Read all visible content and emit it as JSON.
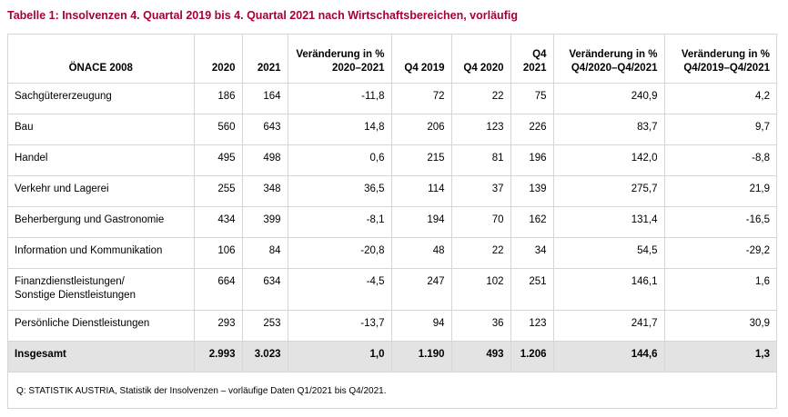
{
  "title": "Tabelle 1: Insolvenzen 4. Quartal 2019 bis 4. Quartal 2021 nach Wirtschaftsbereichen, vorläufig",
  "headers": {
    "sector": "ÖNACE 2008",
    "y2020": "2020",
    "y2021": "2021",
    "chg_year_line1": "Veränderung in %",
    "chg_year_line2": "2020–2021",
    "q4_2019": "Q4 2019",
    "q4_2020": "Q4 2020",
    "q4_2021_line1": "Q4",
    "q4_2021_line2": "2021",
    "chg_q4_2020_line1": "Veränderung in %",
    "chg_q4_2020_line2": "Q4/2020–Q4/2021",
    "chg_q4_2019_line1": "Veränderung in %",
    "chg_q4_2019_line2": "Q4/2019–Q4/2021"
  },
  "rows": [
    {
      "sector": "Sachgütererzeugung",
      "y2020": "186",
      "y2021": "164",
      "chg_year": "-11,8",
      "q4_2019": "72",
      "q4_2020": "22",
      "q4_2021": "75",
      "chg_q4_2020": "240,9",
      "chg_q4_2019": "4,2"
    },
    {
      "sector": "Bau",
      "y2020": "560",
      "y2021": "643",
      "chg_year": "14,8",
      "q4_2019": "206",
      "q4_2020": "123",
      "q4_2021": "226",
      "chg_q4_2020": "83,7",
      "chg_q4_2019": "9,7"
    },
    {
      "sector": "Handel",
      "y2020": "495",
      "y2021": "498",
      "chg_year": "0,6",
      "q4_2019": "215",
      "q4_2020": "81",
      "q4_2021": "196",
      "chg_q4_2020": "142,0",
      "chg_q4_2019": "-8,8"
    },
    {
      "sector": "Verkehr und Lagerei",
      "y2020": "255",
      "y2021": "348",
      "chg_year": "36,5",
      "q4_2019": "114",
      "q4_2020": "37",
      "q4_2021": "139",
      "chg_q4_2020": "275,7",
      "chg_q4_2019": "21,9"
    },
    {
      "sector": "Beherbergung und Gastronomie",
      "y2020": "434",
      "y2021": "399",
      "chg_year": "-8,1",
      "q4_2019": "194",
      "q4_2020": "70",
      "q4_2021": "162",
      "chg_q4_2020": "131,4",
      "chg_q4_2019": "-16,5"
    },
    {
      "sector": "Information und Kommunikation",
      "y2020": "106",
      "y2021": "84",
      "chg_year": "-20,8",
      "q4_2019": "48",
      "q4_2020": "22",
      "q4_2021": "34",
      "chg_q4_2020": "54,5",
      "chg_q4_2019": "-29,2"
    },
    {
      "sector_line1": "Finanzdienstleistungen/",
      "sector_line2": "Sonstige Dienstleistungen",
      "y2020": "664",
      "y2021": "634",
      "chg_year": "-4,5",
      "q4_2019": "247",
      "q4_2020": "102",
      "q4_2021": "251",
      "chg_q4_2020": "146,1",
      "chg_q4_2019": "1,6"
    },
    {
      "sector": "Persönliche Dienstleistungen",
      "y2020": "293",
      "y2021": "253",
      "chg_year": "-13,7",
      "q4_2019": "94",
      "q4_2020": "36",
      "q4_2021": "123",
      "chg_q4_2020": "241,7",
      "chg_q4_2019": "30,9"
    }
  ],
  "total": {
    "sector": "Insgesamt",
    "y2020": "2.993",
    "y2021": "3.023",
    "chg_year": "1,0",
    "q4_2019": "1.190",
    "q4_2020": "493",
    "q4_2021": "1.206",
    "chg_q4_2020": "144,6",
    "chg_q4_2019": "1,3"
  },
  "source_note": "Q: STATISTIK AUSTRIA, Statistik der Insolvenzen – vorläufige Daten Q1/2021 bis Q4/2021."
}
